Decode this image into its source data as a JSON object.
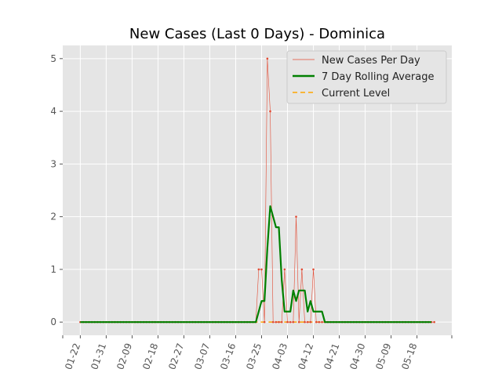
{
  "chart_data": {
    "type": "line",
    "title": "New Cases (Last 0 Days) - Dominica",
    "xlabel": "",
    "ylabel": "",
    "x_start": "2020-01-22",
    "ylim": [
      -0.25,
      5.25
    ],
    "y_ticks": [
      0,
      1,
      2,
      3,
      4,
      5
    ],
    "x_ticks": [
      "01-22",
      "01-31",
      "02-09",
      "02-18",
      "02-27",
      "03-07",
      "03-16",
      "03-25",
      "04-03",
      "04-12",
      "04-21",
      "04-30",
      "05-09",
      "05-18"
    ],
    "grid": true,
    "legend_position": "top-right",
    "colors": {
      "background": "#e5e5e5",
      "grid": "#ffffff",
      "new_cases": "#e24a33",
      "rolling_average": "#008000",
      "current_level": "#ffa500"
    },
    "series": [
      {
        "name": "New Cases Per Day",
        "style": "thin-line-with-markers",
        "values": [
          0,
          0,
          0,
          0,
          0,
          0,
          0,
          0,
          0,
          0,
          0,
          0,
          0,
          0,
          0,
          0,
          0,
          0,
          0,
          0,
          0,
          0,
          0,
          0,
          0,
          0,
          0,
          0,
          0,
          0,
          0,
          0,
          0,
          0,
          0,
          0,
          0,
          0,
          0,
          0,
          0,
          0,
          0,
          0,
          0,
          0,
          0,
          0,
          0,
          0,
          0,
          0,
          0,
          0,
          0,
          0,
          0,
          0,
          0,
          0,
          0,
          0,
          1,
          1,
          0,
          5,
          4,
          0,
          0,
          0,
          0,
          1,
          0,
          0,
          0,
          2,
          0,
          1,
          0,
          0,
          0,
          1,
          0,
          0,
          0,
          0,
          0,
          0,
          0,
          0,
          0,
          0,
          0,
          0,
          0,
          0,
          0,
          0,
          0,
          0,
          0,
          0,
          0,
          0,
          0,
          0,
          0,
          0,
          0,
          0,
          0,
          0,
          0,
          0,
          0,
          0,
          0,
          0,
          0,
          0,
          0,
          0,
          0,
          0
        ]
      },
      {
        "name": "7 Day Rolling Average",
        "style": "thick-line",
        "values": [
          0,
          0,
          0,
          0,
          0,
          0,
          0,
          0,
          0,
          0,
          0,
          0,
          0,
          0,
          0,
          0,
          0,
          0,
          0,
          0,
          0,
          0,
          0,
          0,
          0,
          0,
          0,
          0,
          0,
          0,
          0,
          0,
          0,
          0,
          0,
          0,
          0,
          0,
          0,
          0,
          0,
          0,
          0,
          0,
          0,
          0,
          0,
          0,
          0,
          0,
          0,
          0,
          0,
          0,
          0,
          0,
          0,
          0,
          0,
          0,
          0,
          0,
          0.2,
          0.4,
          0.4,
          1.4,
          2.2,
          2.0,
          1.8,
          1.8,
          0.8,
          0.2,
          0.2,
          0.2,
          0.6,
          0.4,
          0.6,
          0.6,
          0.6,
          0.2,
          0.4,
          0.2,
          0.2,
          0.2,
          0.2,
          0,
          0,
          0,
          0,
          0,
          0,
          0,
          0,
          0,
          0,
          0,
          0,
          0,
          0,
          0,
          0,
          0,
          0,
          0,
          0,
          0,
          0,
          0,
          0,
          0,
          0,
          0,
          0,
          0,
          0,
          0,
          0,
          0,
          0,
          0,
          0,
          0,
          0
        ]
      },
      {
        "name": "Current Level",
        "style": "dashed-line",
        "values": [
          0,
          0,
          0,
          0,
          0,
          0,
          0,
          0,
          0,
          0,
          0,
          0,
          0,
          0,
          0,
          0,
          0,
          0,
          0,
          0,
          0,
          0,
          0,
          0,
          0,
          0,
          0,
          0,
          0,
          0,
          0,
          0,
          0,
          0,
          0,
          0,
          0,
          0,
          0,
          0,
          0,
          0,
          0,
          0,
          0,
          0,
          0,
          0,
          0,
          0,
          0,
          0,
          0,
          0,
          0,
          0,
          0,
          0,
          0,
          0,
          0,
          0,
          0,
          0,
          0,
          0,
          0,
          0,
          0,
          0,
          0,
          0,
          0,
          0,
          0,
          0,
          0,
          0,
          0,
          0,
          0,
          0,
          0,
          0,
          0,
          0,
          0,
          0,
          0,
          0,
          0,
          0,
          0,
          0,
          0,
          0,
          0,
          0,
          0,
          0,
          0,
          0,
          0,
          0,
          0,
          0,
          0,
          0,
          0,
          0,
          0,
          0,
          0,
          0,
          0,
          0,
          0,
          0,
          0,
          0,
          0,
          0,
          0
        ]
      }
    ]
  }
}
